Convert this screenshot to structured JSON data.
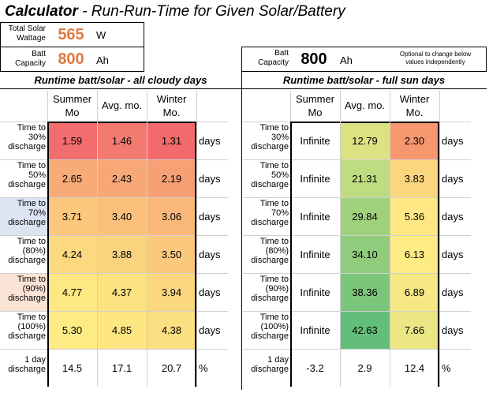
{
  "title": {
    "bold": "Calculator",
    "rest": " - Run-Run-Time for Given Solar/Battery"
  },
  "inputs": {
    "solar_label_1": "Total Solar",
    "solar_label_2": "Wattage",
    "solar_value": "565",
    "solar_unit": "W",
    "batt_label_1": "Batt",
    "batt_label_2": "Capacity",
    "batt_value": "800",
    "batt_unit": "Ah",
    "right_batt_value": "800",
    "right_batt_unit": "Ah",
    "note_1": "Optional to change below",
    "note_2": "values independently"
  },
  "left": {
    "section_title": "Runtime batt/solar - all cloudy days",
    "headers": [
      [
        "Summer",
        "Mo"
      ],
      [
        "Avg. mo.",
        ""
      ],
      [
        "Winter",
        "Mo."
      ]
    ],
    "rows": [
      {
        "l1": "Time to",
        "l2": "30%",
        "l3": "discharge",
        "values": [
          "1.59",
          "1.46",
          "1.31"
        ],
        "unit": "days"
      },
      {
        "l1": "Time to",
        "l2": "50%",
        "l3": "discharge",
        "values": [
          "2.65",
          "2.43",
          "2.19"
        ],
        "unit": "days"
      },
      {
        "l1": "Time to",
        "l2": "70%",
        "l3": "discharge",
        "values": [
          "3.71",
          "3.40",
          "3.06"
        ],
        "unit": "days"
      },
      {
        "l1": "Time to",
        "l2": "(80%)",
        "l3": "discharge",
        "values": [
          "4.24",
          "3.88",
          "3.50"
        ],
        "unit": "days"
      },
      {
        "l1": "Time to",
        "l2": "(90%)",
        "l3": "discharge",
        "values": [
          "4.77",
          "4.37",
          "3.94"
        ],
        "unit": "days"
      },
      {
        "l1": "Time to",
        "l2": "(100%)",
        "l3": "discharge",
        "values": [
          "5.30",
          "4.85",
          "4.38"
        ],
        "unit": "days"
      }
    ],
    "last": {
      "l1": "1 day",
      "l2": "discharge",
      "values": [
        "14.5",
        "17.1",
        "20.7"
      ],
      "unit": "%"
    }
  },
  "right": {
    "section_title": "Runtime batt/solar - full sun days",
    "headers": [
      [
        "Summer",
        "Mo"
      ],
      [
        "Avg. mo.",
        ""
      ],
      [
        "Winter",
        "Mo."
      ]
    ],
    "rows": [
      {
        "l1": "Time to",
        "l2": "30%",
        "l3": "discharge",
        "values": [
          "Infinite",
          "12.79",
          "2.30"
        ],
        "unit": "days"
      },
      {
        "l1": "Time to",
        "l2": "50%",
        "l3": "discharge",
        "values": [
          "Infinite",
          "21.31",
          "3.83"
        ],
        "unit": "days"
      },
      {
        "l1": "Time to",
        "l2": "70%",
        "l3": "discharge",
        "values": [
          "Infinite",
          "29.84",
          "5.36"
        ],
        "unit": "days"
      },
      {
        "l1": "Time to",
        "l2": "(80%)",
        "l3": "discharge",
        "values": [
          "Infinite",
          "34.10",
          "6.13"
        ],
        "unit": "days"
      },
      {
        "l1": "Time to",
        "l2": "(90%)",
        "l3": "discharge",
        "values": [
          "Infinite",
          "38.36",
          "6.89"
        ],
        "unit": "days"
      },
      {
        "l1": "Time to",
        "l2": "(100%)",
        "l3": "discharge",
        "values": [
          "Infinite",
          "42.63",
          "7.66"
        ],
        "unit": "days"
      }
    ],
    "last": {
      "l1": "1 day",
      "l2": "discharge",
      "values": [
        "-3.2",
        "2.9",
        "12.4"
      ],
      "unit": "%"
    }
  },
  "colors": {
    "left": [
      [
        "#F26D6E",
        "#F37A71",
        "#F26A6B"
      ],
      [
        "#F8AA77",
        "#F8A777",
        "#F7A076"
      ],
      [
        "#FAC77C",
        "#FAC07B",
        "#F9B77A"
      ],
      [
        "#FCD880",
        "#FBD27E",
        "#FAC97C"
      ],
      [
        "#FDE883",
        "#FCE281",
        "#FBD87F"
      ],
      [
        "#FFEB84",
        "#FEE783",
        "#FCDF81"
      ]
    ],
    "right": [
      [
        "#ffffff",
        "#DCE182",
        "#F7976F"
      ],
      [
        "#ffffff",
        "#BEDC80",
        "#FCD67F"
      ],
      [
        "#ffffff",
        "#A0D27E",
        "#FFE883"
      ],
      [
        "#ffffff",
        "#90CC7C",
        "#FEEB84"
      ],
      [
        "#ffffff",
        "#7CC67B",
        "#F5E885"
      ],
      [
        "#ffffff",
        "#63BE7B",
        "#EAE683"
      ]
    ],
    "left_label_tint": [
      "",
      "",
      "#DCE3F2",
      "",
      "#FBE3D6",
      ""
    ],
    "accent": "#E07A3F"
  }
}
